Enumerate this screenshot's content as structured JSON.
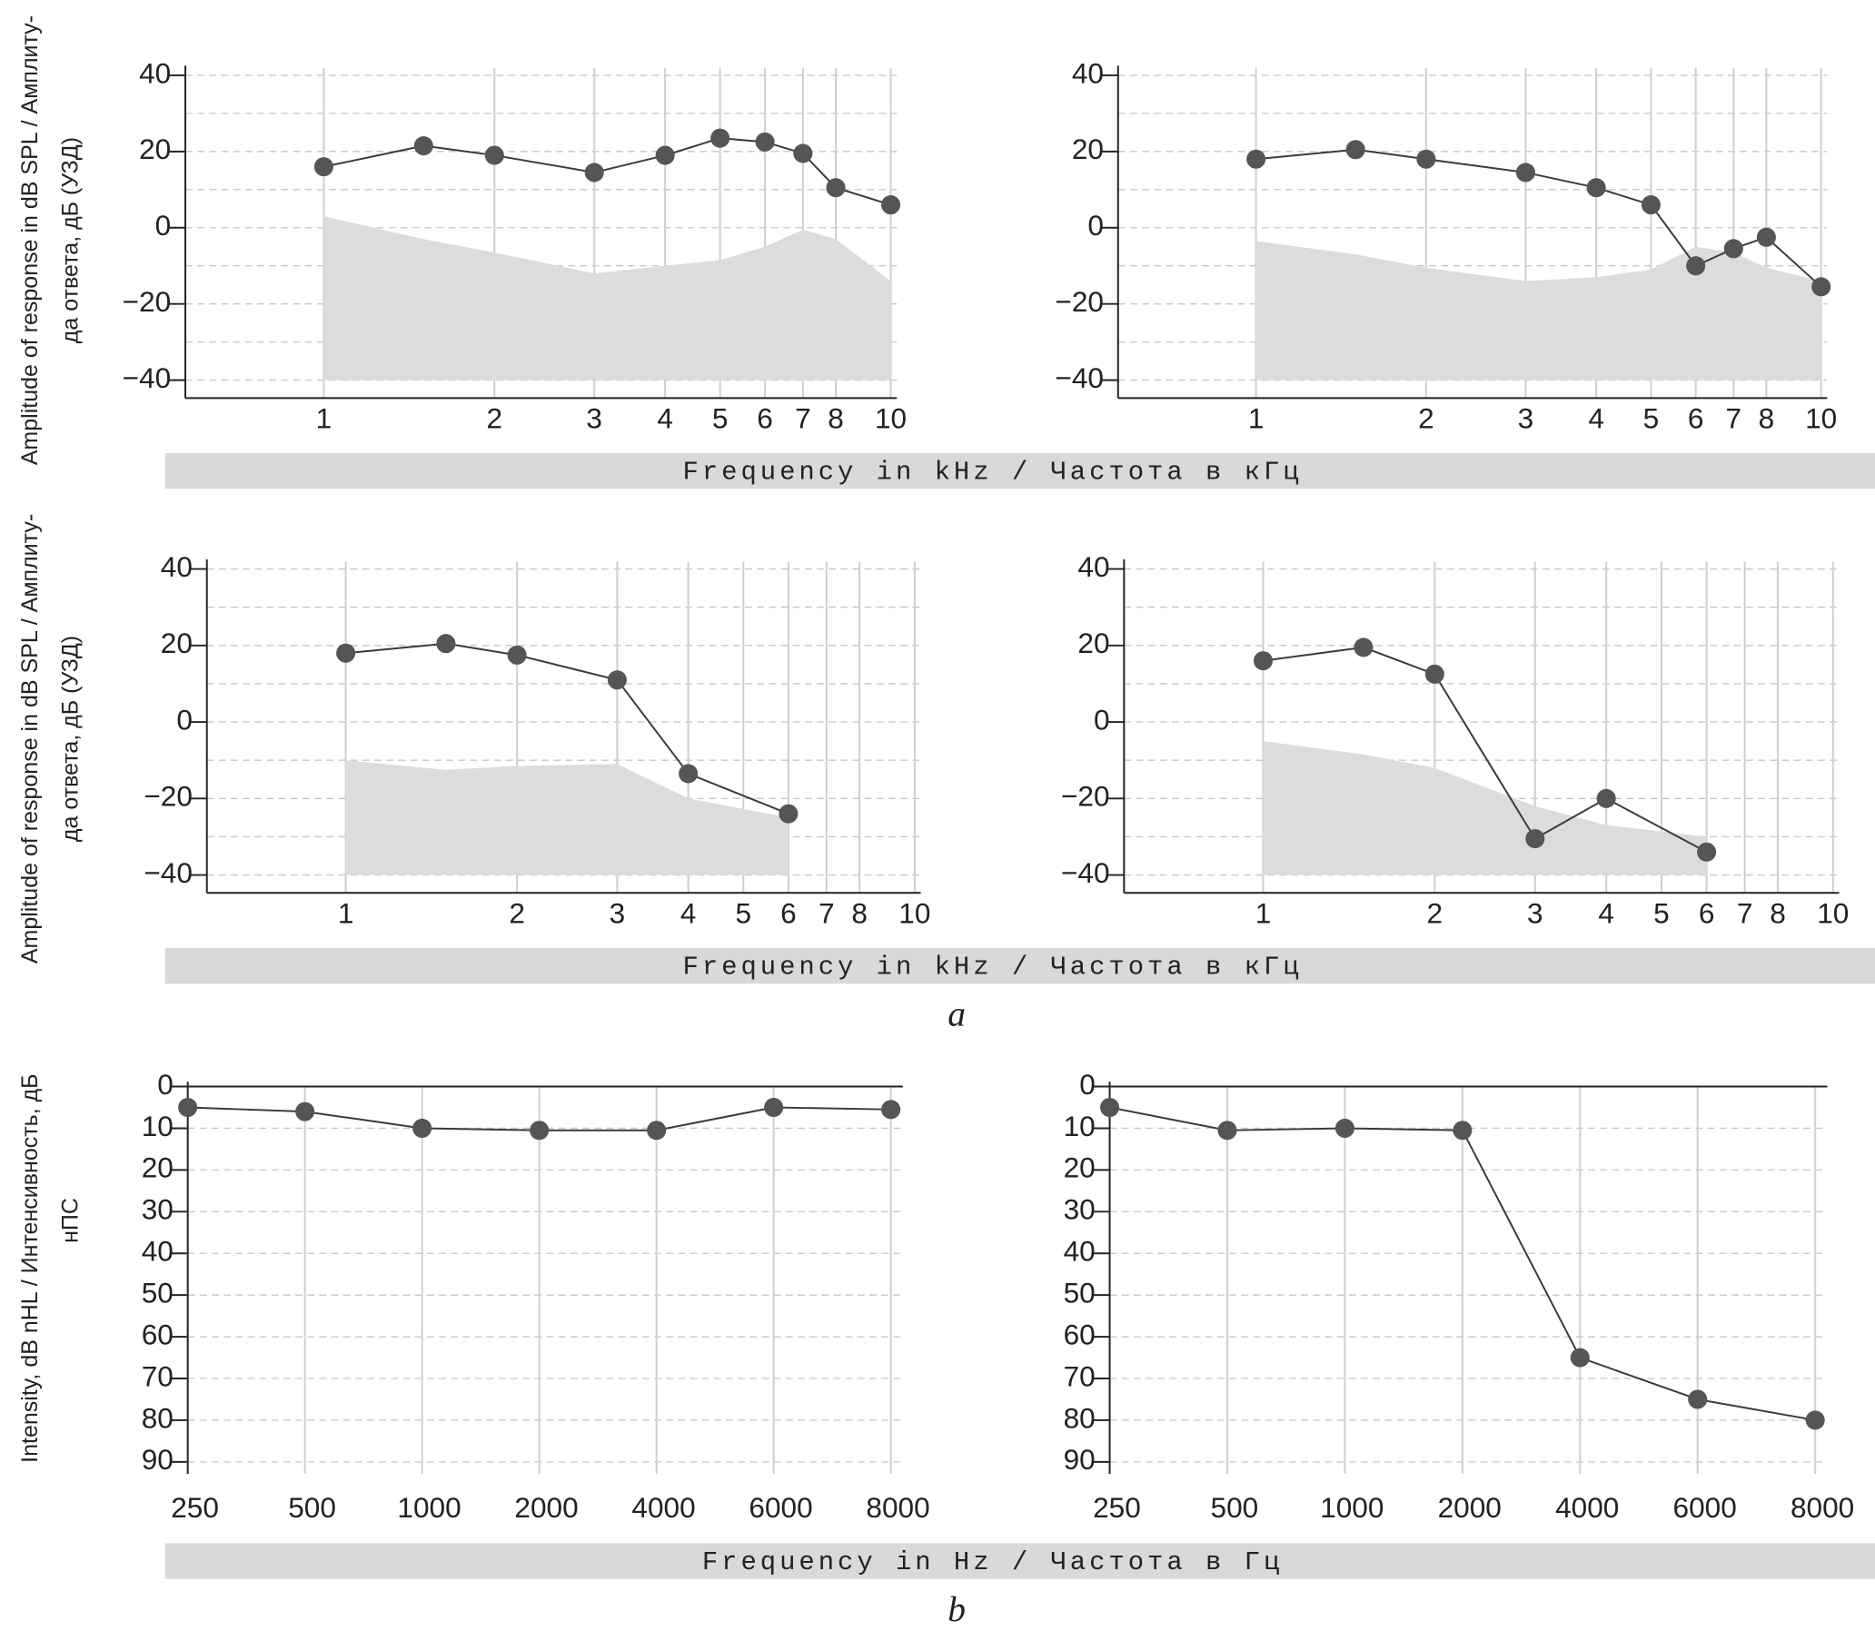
{
  "chart_data": [
    {
      "type": "line",
      "xscale": "log",
      "xlim": [
        0.57,
        10.25
      ],
      "xticks": [
        1,
        2,
        3,
        4,
        5,
        6,
        7,
        8,
        10
      ],
      "ylim": [
        -40,
        40
      ],
      "yticks": [
        {
          "value": -40,
          "label": "−40"
        },
        {
          "value": -20,
          "label": "−20"
        },
        0,
        20,
        40
      ],
      "grid": true,
      "x": [
        1,
        1.5,
        2,
        3,
        4,
        5,
        6,
        7,
        8,
        10
      ],
      "series": [
        {
          "type": "area",
          "color": "#dcdcde",
          "values": [
            3,
            -3,
            -6.5,
            -12,
            -10,
            -8.5,
            -5,
            -0.5,
            -3,
            -14
          ]
        },
        {
          "type": "line",
          "color": "#555558",
          "values": [
            16,
            21.5,
            19,
            14.5,
            19,
            23.5,
            22.5,
            19.5,
            10.5,
            6
          ]
        }
      ]
    },
    {
      "type": "line",
      "xscale": "log",
      "xlim": [
        0.57,
        10.25
      ],
      "xticks": [
        1,
        2,
        3,
        4,
        5,
        6,
        7,
        8,
        10
      ],
      "ylim": [
        -40,
        40
      ],
      "yticks": [
        {
          "value": -40,
          "label": "−40"
        },
        {
          "value": -20,
          "label": "−20"
        },
        0,
        20,
        40
      ],
      "grid": true,
      "x": [
        1,
        1.5,
        2,
        3,
        4,
        5,
        6,
        7,
        8,
        10
      ],
      "series": [
        {
          "type": "area",
          "color": "#dcdcde",
          "values": [
            -3.5,
            -7,
            -10.5,
            -14,
            -13,
            -11,
            -5,
            -6.5,
            -10.5,
            -14
          ]
        },
        {
          "type": "line",
          "color": "#555558",
          "values": [
            18,
            20.5,
            18,
            14.5,
            10.5,
            6,
            -10,
            -5.5,
            -2.5,
            -15.5
          ]
        }
      ]
    },
    {
      "type": "line",
      "xscale": "log",
      "xlim": [
        0.57,
        10.25
      ],
      "xticks": [
        1,
        2,
        3,
        4,
        5,
        6,
        7,
        8,
        10
      ],
      "ylim": [
        -40,
        40
      ],
      "yticks": [
        {
          "value": -40,
          "label": "−40"
        },
        {
          "value": -20,
          "label": "−20"
        },
        0,
        20,
        40
      ],
      "grid": true,
      "x": [
        1,
        1.5,
        2,
        3,
        4,
        6
      ],
      "series": [
        {
          "type": "area",
          "color": "#dcdcde",
          "values": [
            -10,
            -12.5,
            -11.5,
            -11,
            -20,
            -25
          ]
        },
        {
          "type": "line",
          "color": "#555558",
          "values": [
            18,
            20.5,
            17.5,
            11,
            -13.5,
            -24
          ]
        }
      ]
    },
    {
      "type": "line",
      "xscale": "log",
      "xlim": [
        0.57,
        10.25
      ],
      "xticks": [
        1,
        2,
        3,
        4,
        5,
        6,
        7,
        8,
        10
      ],
      "ylim": [
        -40,
        40
      ],
      "yticks": [
        {
          "value": -40,
          "label": "−40"
        },
        {
          "value": -20,
          "label": "−20"
        },
        0,
        20,
        40
      ],
      "grid": true,
      "x": [
        1,
        1.5,
        2,
        3,
        4,
        6
      ],
      "series": [
        {
          "type": "area",
          "color": "#dcdcde",
          "values": [
            -5,
            -8.5,
            -12,
            -22,
            -27,
            -30
          ]
        },
        {
          "type": "line",
          "color": "#555558",
          "values": [
            16,
            19.5,
            12.5,
            -30.5,
            -20,
            -34
          ]
        }
      ]
    },
    {
      "type": "line",
      "categories": [
        "250",
        "500",
        "1000",
        "2000",
        "4000",
        "6000",
        "8000"
      ],
      "ylim": [
        90,
        0
      ],
      "yticks": [
        0,
        10,
        20,
        30,
        40,
        50,
        60,
        70,
        80,
        90
      ],
      "grid": true,
      "series": [
        {
          "type": "line",
          "color": "#555558",
          "values": [
            5,
            6,
            10,
            10.5,
            10.5,
            5,
            5.5
          ]
        }
      ]
    },
    {
      "type": "line",
      "categories": [
        "250",
        "500",
        "1000",
        "2000",
        "4000",
        "6000",
        "8000"
      ],
      "ylim": [
        90,
        0
      ],
      "yticks": [
        0,
        10,
        20,
        30,
        40,
        50,
        60,
        70,
        80,
        90
      ],
      "grid": true,
      "series": [
        {
          "type": "line",
          "color": "#555558",
          "values": [
            5,
            10.5,
            10,
            10.5,
            65,
            75,
            80
          ]
        }
      ]
    }
  ],
  "rows": [
    {
      "y_label": [
        "Amplitude of response in dB SPL / Амплиту-",
        "да ответа, дБ (УЗД)"
      ],
      "x_label": "Frequency in kHz / Частота в кГц"
    },
    {
      "y_label": [
        "Amplitude of response in dB SPL / Амплиту-",
        "да ответа, дБ (УЗД)"
      ],
      "x_label": "Frequency in kHz / Частота в кГц"
    },
    {
      "y_label": [
        "Intensity, dB nHL / Интенсивность, дБ",
        "нПС"
      ],
      "x_label": "Frequency in Hz / Частота в Гц"
    }
  ],
  "captions": [
    "a",
    "b"
  ]
}
